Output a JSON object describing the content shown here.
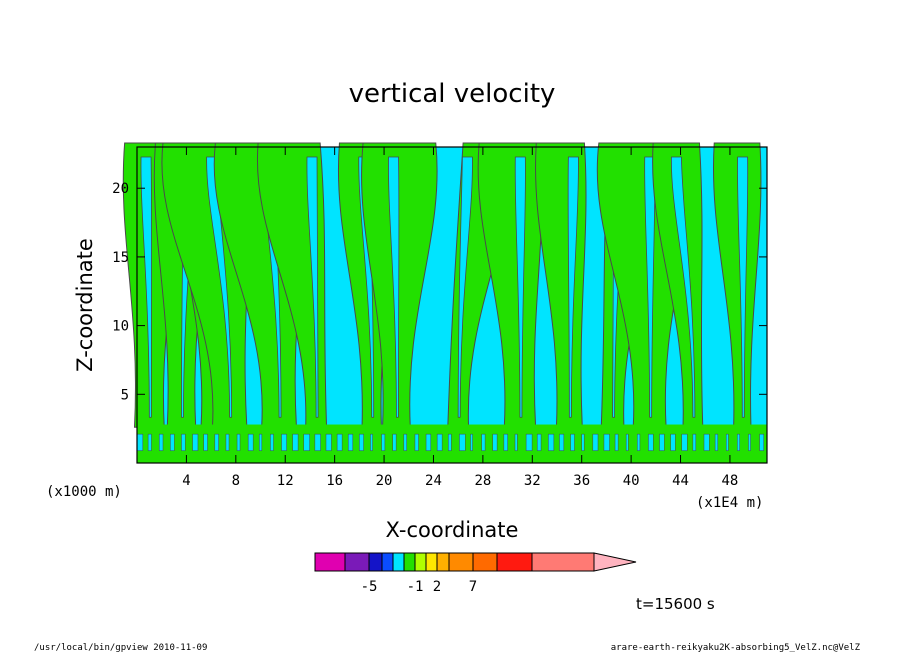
{
  "chart_data": {
    "type": "contour",
    "title": "vertical velocity",
    "xlabel": "X-coordinate",
    "ylabel": "Z-coordinate",
    "x_unit_left": "(x1000 m)",
    "x_unit_right": "(x1E4 m)",
    "x_ticks": [
      "4",
      "8",
      "12",
      "16",
      "20",
      "24",
      "28",
      "32",
      "36",
      "40",
      "44",
      "48"
    ],
    "y_ticks": [
      "5",
      "10",
      "15",
      "20"
    ],
    "xlim": [
      0,
      51
    ],
    "ylim": [
      0,
      23
    ],
    "time_label": "t=15600 s",
    "colorbar": {
      "colors": [
        "#e000b0",
        "#7a1ab8",
        "#1414c8",
        "#0a4cff",
        "#00e4ff",
        "#22e000",
        "#b0ff00",
        "#ffe600",
        "#ffb000",
        "#ff8a00",
        "#ff6a00",
        "#ff1a10",
        "#ff7a74"
      ],
      "extend_color": "#ffb4c0",
      "labels": [
        "-5",
        "-1",
        "2",
        "7"
      ]
    },
    "field_colors": {
      "negative": "#00e4ff",
      "positive": "#22e000",
      "line": "#4a4a4a"
    }
  },
  "footer": {
    "left": "/usr/local/bin/gpview   2010-11-09",
    "right": "arare-earth-reikyaku2K-absorbing5_VelZ.nc@VelZ"
  }
}
